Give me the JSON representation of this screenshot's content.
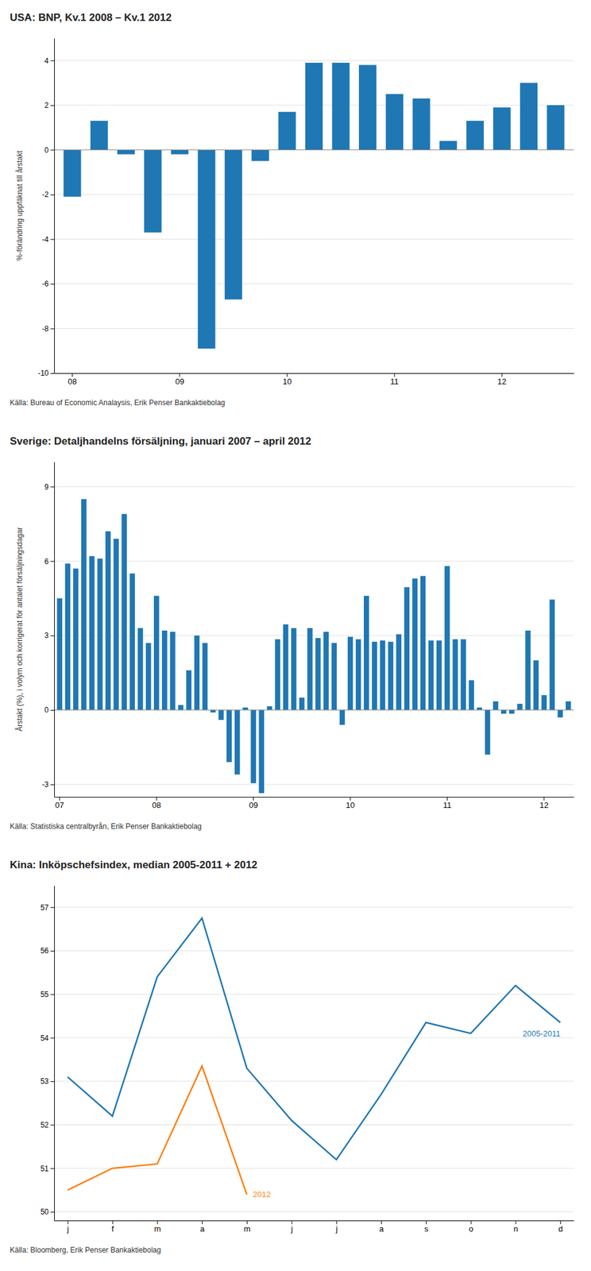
{
  "chart_data": [
    {
      "type": "bar",
      "title": "USA: BNP, Kv.1 2008 – Kv.1 2012",
      "ylabel": "%-förändring uppfäknat till årstakt",
      "annotations": [
        "Källa: Bureau of Economic Analaysis, Erik Penser Bankaktiebolag"
      ],
      "categories": [
        "08",
        null,
        null,
        null,
        "09",
        null,
        null,
        null,
        "10",
        null,
        null,
        null,
        "11",
        null,
        null,
        null,
        "12",
        null,
        null
      ],
      "values": [
        -2.1,
        1.3,
        -0.2,
        -3.7,
        -0.2,
        -8.9,
        -6.7,
        -0.5,
        1.7,
        3.9,
        3.9,
        3.8,
        2.5,
        2.3,
        0.4,
        1.3,
        1.9,
        3.0,
        2.0
      ],
      "ylim": [
        -10,
        5
      ],
      "yticks": [
        -10,
        -8,
        -6,
        -4,
        -2,
        0,
        2,
        4
      ],
      "grid": true
    },
    {
      "type": "bar",
      "title": "Sverige: Detaljhandelns försäljning, januari 2007 – april 2012",
      "ylabel": "Årstakt (%), i volym och korrigerat för antalet försäljningsdagar",
      "annotations": [
        "Källa: Statistiska centralbyrån, Erik Penser Bankaktiebolag"
      ],
      "categories": [
        "07",
        null,
        null,
        null,
        null,
        null,
        null,
        null,
        null,
        null,
        null,
        null,
        "08",
        null,
        null,
        null,
        null,
        null,
        null,
        null,
        null,
        null,
        null,
        null,
        "09",
        null,
        null,
        null,
        null,
        null,
        null,
        null,
        null,
        null,
        null,
        null,
        "10",
        null,
        null,
        null,
        null,
        null,
        null,
        null,
        null,
        null,
        null,
        null,
        "11",
        null,
        null,
        null,
        null,
        null,
        null,
        null,
        null,
        null,
        null,
        null,
        "12",
        null,
        null,
        null
      ],
      "values": [
        4.5,
        5.9,
        5.7,
        8.5,
        6.2,
        6.1,
        7.2,
        6.9,
        7.9,
        5.5,
        3.3,
        2.7,
        4.6,
        3.2,
        3.15,
        0.2,
        1.6,
        3.0,
        2.7,
        -0.1,
        -0.4,
        -2.1,
        -2.6,
        0.1,
        -2.95,
        -3.35,
        0.15,
        2.85,
        3.45,
        3.3,
        0.5,
        3.3,
        2.9,
        3.15,
        2.7,
        -0.6,
        2.95,
        2.85,
        4.6,
        2.75,
        2.8,
        2.75,
        3.05,
        4.95,
        5.3,
        5.4,
        2.8,
        2.8,
        5.8,
        2.85,
        2.85,
        1.2,
        0.1,
        -1.8,
        0.35,
        -0.15,
        -0.15,
        0.25,
        3.2,
        2.0,
        0.6,
        4.45,
        -0.3,
        0.35
      ],
      "ylim": [
        -3.5,
        10
      ],
      "yticks": [
        -3,
        0,
        3,
        6,
        9
      ],
      "grid": true
    },
    {
      "type": "line",
      "title": "Kina: Inköpschefsindex, median 2005-2011 + 2012",
      "annotations": [
        "Källa: Bloomberg, Erik Penser Bankaktiebolag"
      ],
      "categories": [
        "j",
        "f",
        "m",
        "a",
        "m",
        "j",
        "j",
        "a",
        "s",
        "o",
        "n",
        "d"
      ],
      "series": [
        {
          "name": "2005-2011",
          "values": [
            53.1,
            52.2,
            55.4,
            56.75,
            53.3,
            52.1,
            51.2,
            52.7,
            54.35,
            54.1,
            55.2,
            54.35
          ]
        },
        {
          "name": "2012",
          "values": [
            50.5,
            51.0,
            51.1,
            53.35,
            50.4,
            null,
            null,
            null,
            null,
            null,
            null,
            null
          ]
        }
      ],
      "ylim": [
        49.8,
        57.5
      ],
      "yticks": [
        50,
        51,
        52,
        53,
        54,
        55,
        56,
        57
      ],
      "grid": true
    }
  ]
}
